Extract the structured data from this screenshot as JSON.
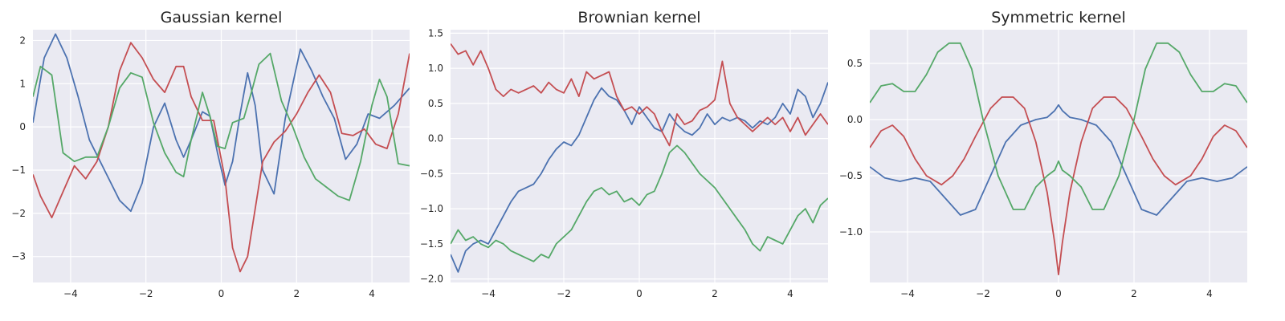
{
  "chart_data": [
    {
      "type": "line",
      "title": "Gaussian kernel",
      "xlim": [
        -5,
        5
      ],
      "ylim": [
        -3.6,
        2.25
      ],
      "xticks": [
        -4,
        -2,
        0,
        2,
        4
      ],
      "xtick_labels": [
        "−4",
        "−2",
        "0",
        "2",
        "4"
      ],
      "yticks": [
        2,
        1,
        0,
        -1,
        -2,
        -3
      ],
      "ytick_labels": [
        "2",
        "1",
        "0",
        "−1",
        "−2",
        "−3"
      ],
      "grid": true,
      "series": [
        {
          "color": "#4c72b0",
          "x": [
            -5,
            -4.7,
            -4.4,
            -4.1,
            -3.8,
            -3.5,
            -3.1,
            -2.7,
            -2.4,
            -2.1,
            -1.8,
            -1.5,
            -1.2,
            -1.0,
            -0.8,
            -0.5,
            -0.3,
            -0.1,
            0.1,
            0.3,
            0.5,
            0.7,
            0.9,
            1.1,
            1.4,
            1.7,
            2.1,
            2.4,
            2.7,
            3.0,
            3.3,
            3.6,
            3.9,
            4.2,
            4.6,
            5
          ],
          "y": [
            0.1,
            1.6,
            2.15,
            1.6,
            0.7,
            -0.3,
            -1.0,
            -1.7,
            -1.95,
            -1.3,
            0.0,
            0.55,
            -0.3,
            -0.7,
            -0.3,
            0.35,
            0.25,
            -0.6,
            -1.35,
            -0.8,
            0.3,
            1.25,
            0.5,
            -1.0,
            -1.55,
            0.2,
            1.8,
            1.3,
            0.7,
            0.2,
            -0.75,
            -0.4,
            0.3,
            0.2,
            0.5,
            0.9
          ]
        },
        {
          "color": "#c44e52",
          "x": [
            -5,
            -4.8,
            -4.5,
            -4.2,
            -3.9,
            -3.6,
            -3.3,
            -3.0,
            -2.7,
            -2.4,
            -2.1,
            -1.8,
            -1.5,
            -1.2,
            -1.0,
            -0.8,
            -0.5,
            -0.2,
            0.1,
            0.3,
            0.5,
            0.7,
            0.9,
            1.1,
            1.4,
            1.7,
            2.0,
            2.3,
            2.6,
            2.9,
            3.2,
            3.5,
            3.8,
            4.1,
            4.4,
            4.7,
            5
          ],
          "y": [
            -1.1,
            -1.6,
            -2.1,
            -1.5,
            -0.9,
            -1.2,
            -0.8,
            0.0,
            1.3,
            1.95,
            1.6,
            1.1,
            0.8,
            1.4,
            1.4,
            0.7,
            0.15,
            0.15,
            -1.2,
            -2.8,
            -3.35,
            -3.0,
            -1.9,
            -0.8,
            -0.35,
            -0.1,
            0.3,
            0.8,
            1.2,
            0.8,
            -0.15,
            -0.2,
            -0.05,
            -0.4,
            -0.5,
            0.3,
            1.7
          ]
        },
        {
          "color": "#55a868",
          "x": [
            -5,
            -4.8,
            -4.5,
            -4.2,
            -3.9,
            -3.6,
            -3.3,
            -3.0,
            -2.7,
            -2.4,
            -2.1,
            -1.8,
            -1.5,
            -1.2,
            -1.0,
            -0.8,
            -0.5,
            -0.3,
            -0.1,
            0.1,
            0.3,
            0.6,
            0.8,
            1.0,
            1.3,
            1.6,
            1.9,
            2.2,
            2.5,
            2.8,
            3.1,
            3.4,
            3.7,
            4.0,
            4.2,
            4.4,
            4.7,
            5
          ],
          "y": [
            0.7,
            1.4,
            1.2,
            -0.6,
            -0.8,
            -0.7,
            -0.7,
            0.0,
            0.9,
            1.25,
            1.15,
            0.1,
            -0.6,
            -1.05,
            -1.15,
            -0.3,
            0.8,
            0.25,
            -0.45,
            -0.5,
            0.1,
            0.2,
            0.8,
            1.45,
            1.7,
            0.6,
            0.0,
            -0.7,
            -1.2,
            -1.4,
            -1.6,
            -1.7,
            -0.8,
            0.5,
            1.1,
            0.7,
            -0.85,
            -0.9
          ]
        }
      ]
    },
    {
      "type": "line",
      "title": "Brownian kernel",
      "xlim": [
        -5,
        5
      ],
      "ylim": [
        -2.05,
        1.55
      ],
      "xticks": [
        -4,
        -2,
        0,
        2,
        4
      ],
      "xtick_labels": [
        "−4",
        "−2",
        "0",
        "2",
        "4"
      ],
      "yticks": [
        1.5,
        1.0,
        0.5,
        0.0,
        -0.5,
        -1.0,
        -1.5,
        -2.0
      ],
      "ytick_labels": [
        "1.5",
        "1.0",
        "0.5",
        "0.0",
        "−0.5",
        "−1.0",
        "−1.5",
        "−2.0"
      ],
      "grid": true,
      "series": [
        {
          "color": "#4c72b0",
          "x": [
            -5,
            -4.8,
            -4.6,
            -4.4,
            -4.2,
            -4.0,
            -3.8,
            -3.6,
            -3.4,
            -3.2,
            -3.0,
            -2.8,
            -2.6,
            -2.4,
            -2.2,
            -2.0,
            -1.8,
            -1.6,
            -1.4,
            -1.2,
            -1.0,
            -0.8,
            -0.6,
            -0.4,
            -0.2,
            0.0,
            0.2,
            0.4,
            0.6,
            0.8,
            1.0,
            1.2,
            1.4,
            1.6,
            1.8,
            2.0,
            2.2,
            2.4,
            2.6,
            2.8,
            3.0,
            3.2,
            3.4,
            3.6,
            3.8,
            4.0,
            4.2,
            4.4,
            4.6,
            4.8,
            5
          ],
          "y": [
            -1.65,
            -1.9,
            -1.6,
            -1.5,
            -1.45,
            -1.5,
            -1.3,
            -1.1,
            -0.9,
            -0.75,
            -0.7,
            -0.65,
            -0.5,
            -0.3,
            -0.15,
            -0.05,
            -0.1,
            0.05,
            0.3,
            0.55,
            0.72,
            0.6,
            0.55,
            0.4,
            0.2,
            0.45,
            0.3,
            0.15,
            0.1,
            0.35,
            0.2,
            0.1,
            0.05,
            0.15,
            0.35,
            0.2,
            0.3,
            0.25,
            0.3,
            0.25,
            0.15,
            0.25,
            0.2,
            0.3,
            0.5,
            0.35,
            0.7,
            0.6,
            0.3,
            0.5,
            0.8
          ]
        },
        {
          "color": "#c44e52",
          "x": [
            -5,
            -4.8,
            -4.6,
            -4.4,
            -4.2,
            -4.0,
            -3.8,
            -3.6,
            -3.4,
            -3.2,
            -3.0,
            -2.8,
            -2.6,
            -2.4,
            -2.2,
            -2.0,
            -1.8,
            -1.6,
            -1.4,
            -1.2,
            -1.0,
            -0.8,
            -0.6,
            -0.4,
            -0.2,
            0.0,
            0.2,
            0.4,
            0.6,
            0.8,
            1.0,
            1.2,
            1.4,
            1.6,
            1.8,
            2.0,
            2.2,
            2.4,
            2.6,
            2.8,
            3.0,
            3.2,
            3.4,
            3.6,
            3.8,
            4.0,
            4.2,
            4.4,
            4.6,
            4.8,
            5
          ],
          "y": [
            1.35,
            1.2,
            1.25,
            1.05,
            1.25,
            1.0,
            0.7,
            0.6,
            0.7,
            0.65,
            0.7,
            0.75,
            0.65,
            0.8,
            0.7,
            0.65,
            0.85,
            0.6,
            0.95,
            0.85,
            0.9,
            0.95,
            0.6,
            0.4,
            0.45,
            0.35,
            0.45,
            0.35,
            0.1,
            -0.1,
            0.35,
            0.2,
            0.25,
            0.4,
            0.45,
            0.55,
            1.1,
            0.5,
            0.3,
            0.2,
            0.1,
            0.2,
            0.3,
            0.2,
            0.3,
            0.1,
            0.3,
            0.05,
            0.2,
            0.35,
            0.2
          ]
        },
        {
          "color": "#55a868",
          "x": [
            -5,
            -4.8,
            -4.6,
            -4.4,
            -4.2,
            -4.0,
            -3.8,
            -3.6,
            -3.4,
            -3.2,
            -3.0,
            -2.8,
            -2.6,
            -2.4,
            -2.2,
            -2.0,
            -1.8,
            -1.6,
            -1.4,
            -1.2,
            -1.0,
            -0.8,
            -0.6,
            -0.4,
            -0.2,
            0.0,
            0.2,
            0.4,
            0.6,
            0.8,
            1.0,
            1.2,
            1.4,
            1.6,
            1.8,
            2.0,
            2.2,
            2.4,
            2.6,
            2.8,
            3.0,
            3.2,
            3.4,
            3.6,
            3.8,
            4.0,
            4.2,
            4.4,
            4.6,
            4.8,
            5
          ],
          "y": [
            -1.5,
            -1.3,
            -1.45,
            -1.4,
            -1.5,
            -1.55,
            -1.45,
            -1.5,
            -1.6,
            -1.65,
            -1.7,
            -1.75,
            -1.65,
            -1.7,
            -1.5,
            -1.4,
            -1.3,
            -1.1,
            -0.9,
            -0.75,
            -0.7,
            -0.8,
            -0.75,
            -0.9,
            -0.85,
            -0.95,
            -0.8,
            -0.75,
            -0.5,
            -0.2,
            -0.1,
            -0.2,
            -0.35,
            -0.5,
            -0.6,
            -0.7,
            -0.85,
            -1.0,
            -1.15,
            -1.3,
            -1.5,
            -1.6,
            -1.4,
            -1.45,
            -1.5,
            -1.3,
            -1.1,
            -1.0,
            -1.2,
            -0.95,
            -0.85
          ]
        }
      ]
    },
    {
      "type": "line",
      "title": "Symmetric kernel",
      "xlim": [
        -5,
        5
      ],
      "ylim": [
        -1.45,
        0.8
      ],
      "xticks": [
        -4,
        -2,
        0,
        2,
        4
      ],
      "xtick_labels": [
        "−4",
        "−2",
        "0",
        "2",
        "4"
      ],
      "yticks": [
        0.5,
        0.0,
        -0.5,
        -1.0
      ],
      "ytick_labels": [
        "0.5",
        "0.0",
        "−0.5",
        "−1.0"
      ],
      "grid": true,
      "series": [
        {
          "color": "#4c72b0",
          "x": [
            -5,
            -4.6,
            -4.2,
            -3.8,
            -3.4,
            -3.0,
            -2.6,
            -2.2,
            -1.8,
            -1.4,
            -1.0,
            -0.6,
            -0.3,
            -0.1,
            0.0,
            0.1,
            0.3,
            0.6,
            1.0,
            1.4,
            1.8,
            2.2,
            2.6,
            3.0,
            3.4,
            3.8,
            4.2,
            4.6,
            5
          ],
          "y": [
            -0.42,
            -0.52,
            -0.55,
            -0.52,
            -0.55,
            -0.7,
            -0.85,
            -0.8,
            -0.5,
            -0.2,
            -0.05,
            0.0,
            0.02,
            0.08,
            0.13,
            0.08,
            0.02,
            0.0,
            -0.05,
            -0.2,
            -0.5,
            -0.8,
            -0.85,
            -0.7,
            -0.55,
            -0.52,
            -0.55,
            -0.52,
            -0.42
          ]
        },
        {
          "color": "#c44e52",
          "x": [
            -5,
            -4.7,
            -4.4,
            -4.1,
            -3.8,
            -3.5,
            -3.1,
            -2.8,
            -2.5,
            -2.2,
            -1.8,
            -1.5,
            -1.2,
            -0.9,
            -0.6,
            -0.3,
            -0.1,
            0.0,
            0.1,
            0.3,
            0.6,
            0.9,
            1.2,
            1.5,
            1.8,
            2.2,
            2.5,
            2.8,
            3.1,
            3.5,
            3.8,
            4.1,
            4.4,
            4.7,
            5
          ],
          "y": [
            -0.25,
            -0.1,
            -0.05,
            -0.15,
            -0.35,
            -0.5,
            -0.58,
            -0.5,
            -0.35,
            -0.15,
            0.1,
            0.2,
            0.2,
            0.1,
            -0.2,
            -0.65,
            -1.1,
            -1.38,
            -1.1,
            -0.65,
            -0.2,
            0.1,
            0.2,
            0.2,
            0.1,
            -0.15,
            -0.35,
            -0.5,
            -0.58,
            -0.5,
            -0.35,
            -0.15,
            -0.05,
            -0.1,
            -0.25
          ]
        },
        {
          "color": "#55a868",
          "x": [
            -5,
            -4.7,
            -4.4,
            -4.1,
            -3.8,
            -3.5,
            -3.2,
            -2.9,
            -2.6,
            -2.3,
            -2.0,
            -1.6,
            -1.2,
            -0.9,
            -0.6,
            -0.3,
            -0.1,
            0.0,
            0.1,
            0.3,
            0.6,
            0.9,
            1.2,
            1.6,
            2.0,
            2.3,
            2.6,
            2.9,
            3.2,
            3.5,
            3.8,
            4.1,
            4.4,
            4.7,
            5
          ],
          "y": [
            0.15,
            0.3,
            0.32,
            0.25,
            0.25,
            0.4,
            0.6,
            0.68,
            0.68,
            0.45,
            0.0,
            -0.5,
            -0.8,
            -0.8,
            -0.6,
            -0.5,
            -0.45,
            -0.37,
            -0.45,
            -0.5,
            -0.6,
            -0.8,
            -0.8,
            -0.5,
            0.0,
            0.45,
            0.68,
            0.68,
            0.6,
            0.4,
            0.25,
            0.25,
            0.32,
            0.3,
            0.15
          ]
        }
      ]
    }
  ]
}
